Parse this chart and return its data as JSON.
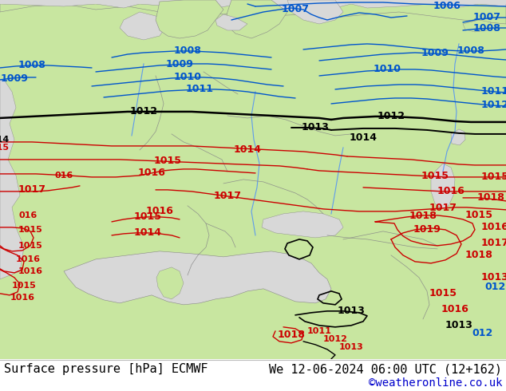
{
  "title_left": "Surface pressure [hPa] ECMWF",
  "title_right": "We 12-06-2024 06:00 UTC (12+162)",
  "credit": "©weatheronline.co.uk",
  "land_color": "#c8e6a0",
  "sea_color": "#d8d8d8",
  "border_color": "#888888",
  "blue_isobar": "#0055cc",
  "red_isobar": "#cc0000",
  "black_isobar": "#000000",
  "bottom_bg": "#ffffff",
  "text_color": "#000000",
  "credit_color": "#0000cc",
  "font_size_label": 9,
  "font_size_bottom": 11
}
